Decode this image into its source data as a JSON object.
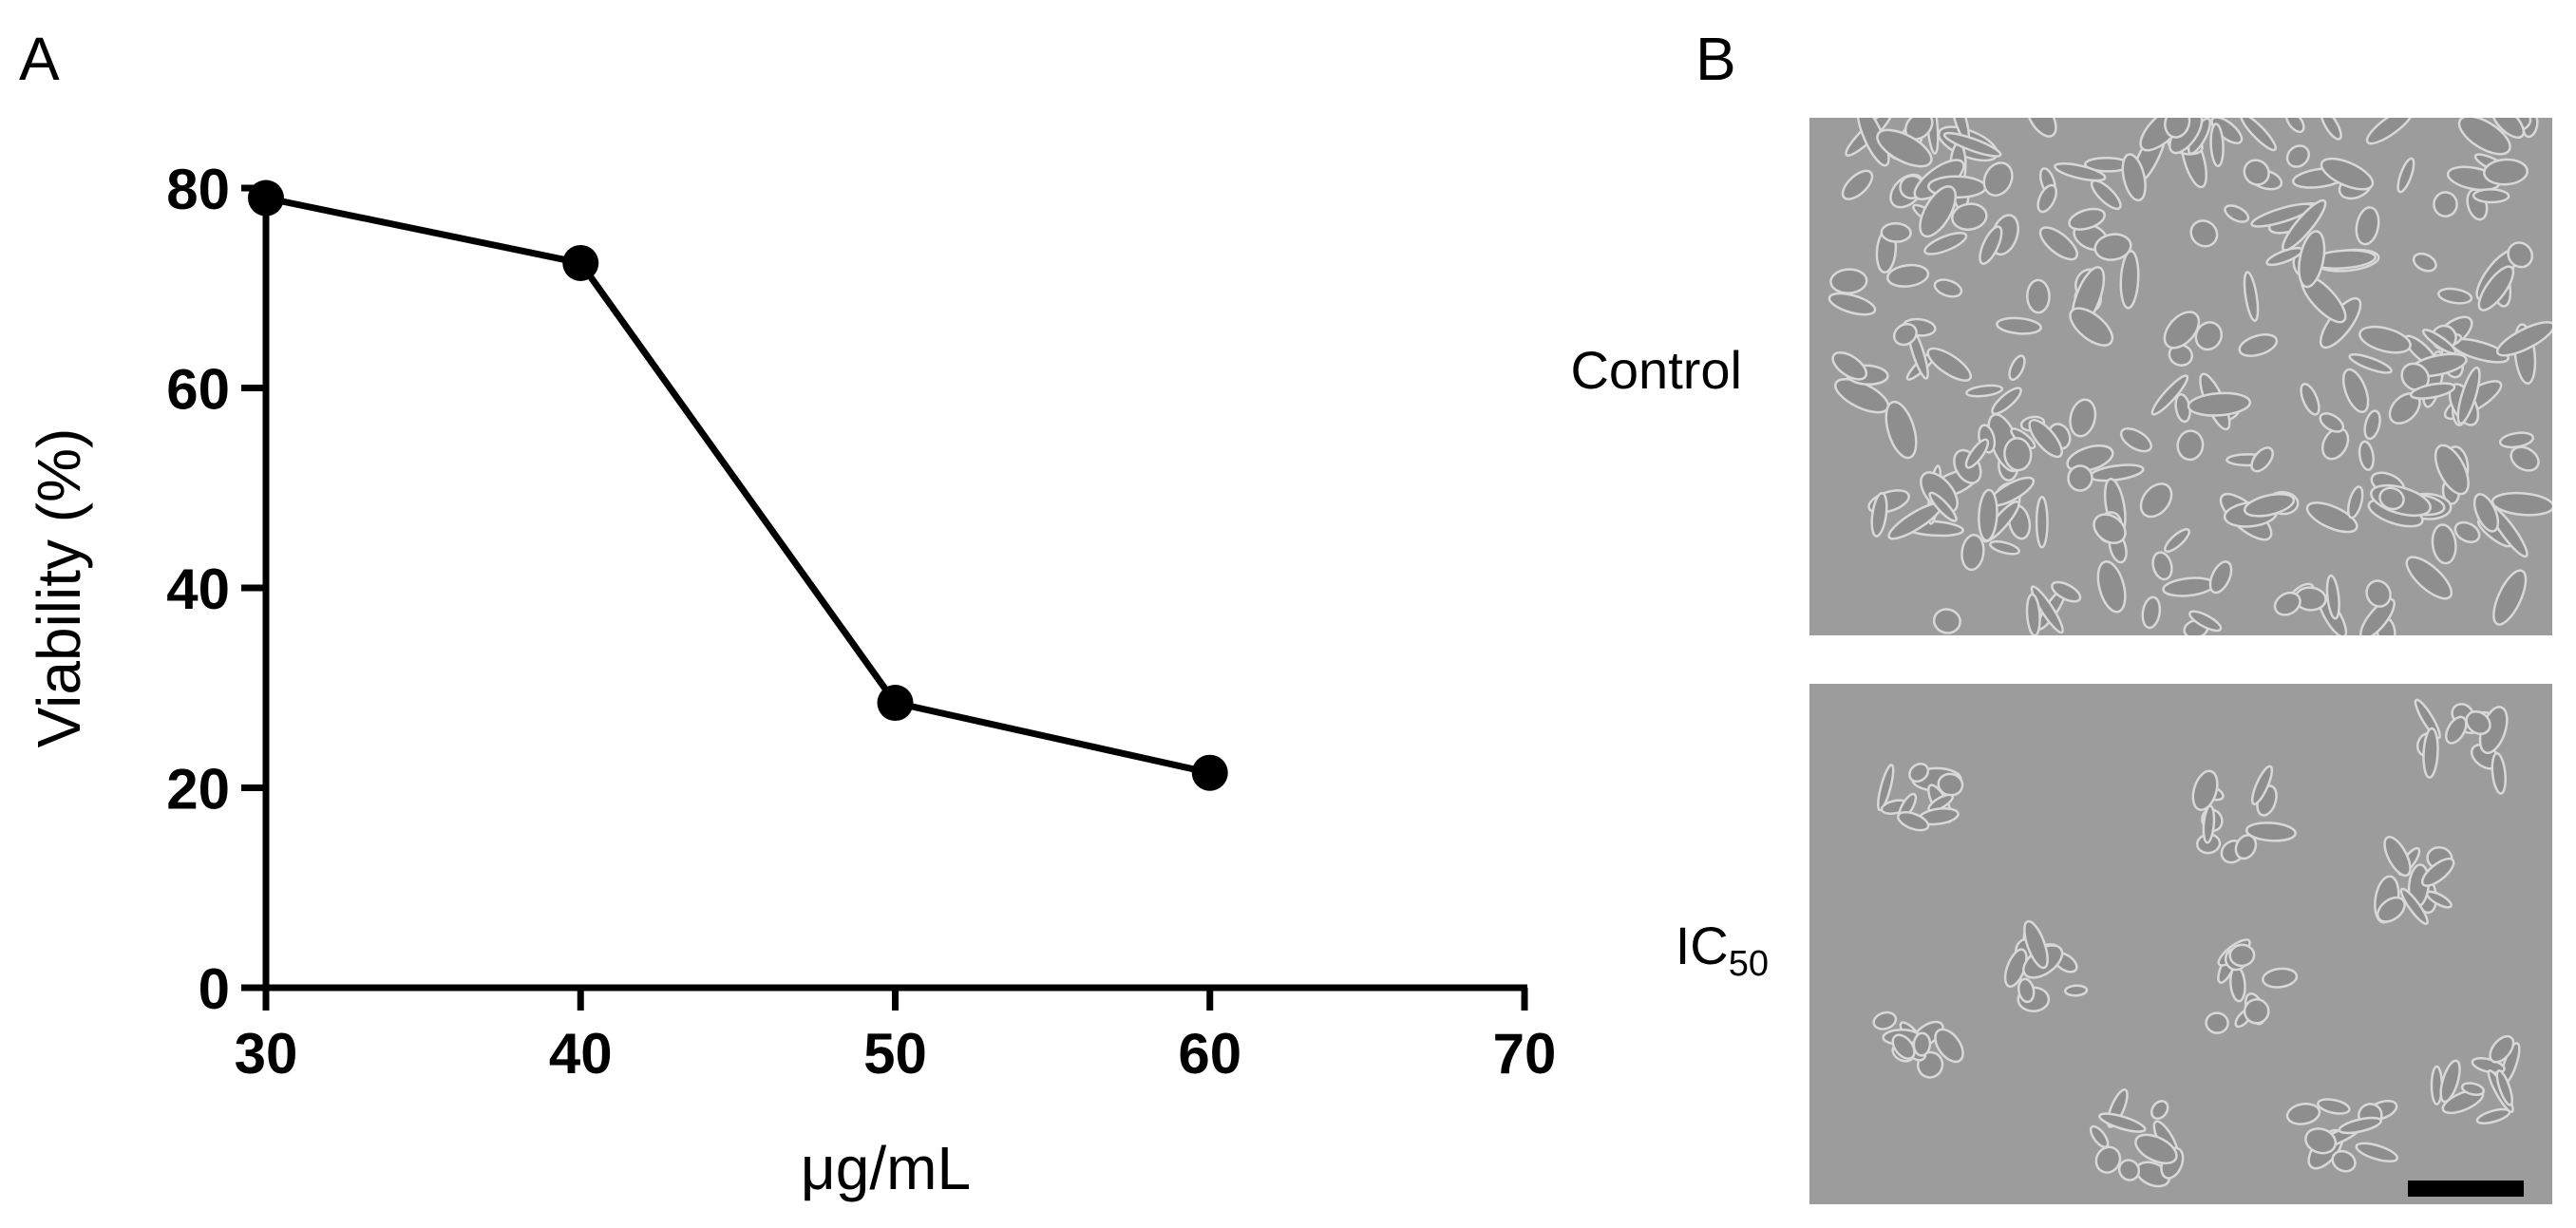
{
  "panels": {
    "a_label": "A",
    "b_label": "B"
  },
  "chart_data": {
    "type": "line",
    "x": [
      30,
      40,
      50,
      60
    ],
    "y": [
      79,
      72.5,
      28.5,
      21.5
    ],
    "xlabel": "μg/mL",
    "ylabel": "Viability (%)",
    "xlim": [
      30,
      70
    ],
    "ylim": [
      0,
      80
    ],
    "xticks": [
      30,
      40,
      50,
      60,
      70
    ],
    "yticks": [
      0,
      20,
      40,
      60,
      80
    ],
    "grid": false,
    "line_color": "#000000",
    "marker": "filled-circle"
  },
  "micrographs": {
    "control_label": "Control",
    "ic50_label_main": "IC",
    "ic50_label_sub": "50",
    "background_color": "#9c9c9c",
    "cell_edge_color": "#d8d8d8",
    "scale_bar_color": "#000000"
  }
}
